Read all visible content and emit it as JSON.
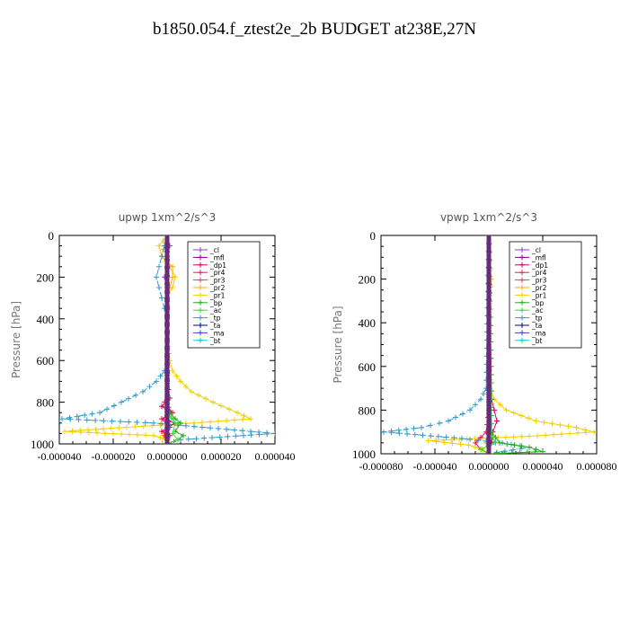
{
  "title": "b1850.054.f_ztest2e_2b  BUDGET at238E,27N",
  "colors": {
    "_cl": "#9933cc",
    "_mfl": "#880088",
    "_dp1": "#cc0066",
    "_pr4": "#dd2255",
    "_pr3": "#ff3366",
    "_pr2": "#ffaa00",
    "_pr1": "#f2d000",
    "_bp": "#22aa22",
    "_ac": "#33dd33",
    "_tp": "#3399cc",
    "_ta": "#000088",
    "_ma": "#4444cc",
    "_bt": "#00cccc"
  },
  "chart_data": [
    {
      "type": "line",
      "title": "upwp   1xm^2/s^3",
      "ylabel": "Pressure [hPa]",
      "xlabel": "",
      "xlim": [
        -4e-05,
        4e-05
      ],
      "ylim": [
        1000,
        0
      ],
      "xticks": [
        "-0.000040",
        "-0.000020",
        "0.000000",
        "0.000020",
        "0.000040"
      ],
      "yticks": [
        "0",
        "200",
        "400",
        "600",
        "800",
        "1000"
      ],
      "legend_position": "top-right",
      "legend": [
        "_cl",
        "_mfl",
        "_dp1",
        "_pr4",
        "_pr3",
        "_pr2",
        "_pr1",
        "_bp",
        "_ac",
        "_tp",
        "_ta",
        "_ma",
        "_bt"
      ],
      "series": [
        {
          "name": "_pr1",
          "p": [
            0,
            50,
            100,
            150,
            200,
            250,
            300,
            400,
            500,
            600,
            650,
            700,
            750,
            800,
            850,
            880,
            900,
            920,
            940,
            960,
            980,
            1000
          ],
          "v": [
            0,
            -3e-06,
            -2e-06,
            1e-06,
            3e-06,
            2e-06,
            0,
            0,
            0,
            1e-06,
            2e-06,
            5e-06,
            9e-06,
            1.7e-05,
            2.6e-05,
            3.1e-05,
            1e-05,
            -1.5e-05,
            -3.8e-05,
            -5e-06,
            0,
            0
          ]
        },
        {
          "name": "_pr2",
          "p": [
            0,
            100,
            150,
            200,
            250,
            300,
            500,
            700,
            800,
            900,
            950,
            1000
          ],
          "v": [
            0,
            -2e-06,
            2e-06,
            2e-06,
            1e-06,
            0,
            0,
            0,
            0,
            0,
            -1e-06,
            -2e-06
          ]
        },
        {
          "name": "_tp",
          "p": [
            0,
            50,
            100,
            150,
            200,
            250,
            300,
            350,
            400,
            500,
            600,
            650,
            700,
            750,
            800,
            850,
            880,
            900,
            950,
            980,
            1000
          ],
          "v": [
            0,
            -1e-06,
            -2e-06,
            -3e-06,
            -4e-06,
            -3e-06,
            -2e-06,
            -1e-06,
            0,
            0,
            0,
            -1e-06,
            -4e-06,
            -9e-06,
            -1.7e-05,
            -2.5e-05,
            -3.9e-05,
            -5e-06,
            4e-05,
            5e-06,
            0
          ]
        },
        {
          "name": "_dp1",
          "p": [
            0,
            700,
            780,
            820,
            850,
            880,
            900,
            940,
            960,
            980,
            1000
          ],
          "v": [
            0,
            0,
            1e-06,
            -2e-06,
            2e-06,
            -2e-06,
            3e-06,
            -2e-06,
            1e-06,
            0,
            0
          ]
        },
        {
          "name": "_pr4",
          "p": [
            0,
            750,
            800,
            850,
            880,
            920,
            960,
            1000
          ],
          "v": [
            0,
            0,
            -1e-06,
            2e-06,
            -2e-06,
            1e-06,
            -1e-06,
            0
          ]
        },
        {
          "name": "_bp",
          "p": [
            0,
            800,
            850,
            880,
            900,
            940,
            960,
            980,
            1000
          ],
          "v": [
            0,
            0,
            1e-06,
            3e-06,
            5e-06,
            3e-06,
            6e-06,
            4e-06,
            0
          ]
        },
        {
          "name": "_ac",
          "p": [
            0,
            850,
            900,
            950,
            980,
            1000
          ],
          "v": [
            0,
            0,
            3e-06,
            2e-06,
            4e-06,
            0
          ]
        },
        {
          "name": "_cl",
          "p": [
            0,
            50,
            100,
            150,
            200,
            250,
            300,
            500,
            700,
            900,
            1000
          ],
          "v": [
            0,
            1e-06,
            0,
            0,
            -1e-06,
            0,
            0,
            0,
            0,
            0,
            0
          ]
        },
        {
          "name": "_mfl",
          "p": [
            0,
            1000
          ],
          "v": [
            0,
            0
          ]
        },
        {
          "name": "_ta",
          "p": [
            0,
            1000
          ],
          "v": [
            0,
            0
          ]
        },
        {
          "name": "_ma",
          "p": [
            0,
            1000
          ],
          "v": [
            0,
            0
          ]
        },
        {
          "name": "_bt",
          "p": [
            0,
            1000
          ],
          "v": [
            0,
            0
          ]
        }
      ]
    },
    {
      "type": "line",
      "title": "vpwp   1xm^2/s^3",
      "ylabel": "Pressure [hPa]",
      "xlabel": "",
      "xlim": [
        -8e-05,
        8e-05
      ],
      "ylim": [
        1000,
        0
      ],
      "xticks": [
        "-0.000080",
        "-0.000040",
        "0.000000",
        "0.000040",
        "0.000080"
      ],
      "yticks": [
        "0",
        "200",
        "400",
        "600",
        "800",
        "1000"
      ],
      "legend_position": "top-right",
      "legend": [
        "_cl",
        "_mfl",
        "_dp1",
        "_pr4",
        "_pr3",
        "_pr2",
        "_pr1",
        "_bp",
        "_ac",
        "_tp",
        "_ta",
        "_ma",
        "_bt"
      ],
      "series": [
        {
          "name": "_pr1",
          "p": [
            0,
            150,
            200,
            300,
            500,
            700,
            750,
            800,
            850,
            880,
            900,
            920,
            940,
            960,
            980,
            1000
          ],
          "v": [
            0,
            1e-06,
            2e-06,
            0,
            0,
            1e-06,
            4e-06,
            1.3e-05,
            3.5e-05,
            6.5e-05,
            7.8e-05,
            3e-05,
            -4.5e-05,
            -1.5e-05,
            -5e-06,
            0
          ]
        },
        {
          "name": "_pr2",
          "p": [
            0,
            200,
            500,
            900,
            950,
            1000
          ],
          "v": [
            0,
            1e-06,
            0,
            0,
            -2e-06,
            0
          ]
        },
        {
          "name": "_tp",
          "p": [
            0,
            700,
            750,
            800,
            850,
            880,
            900,
            930,
            950,
            970,
            1000
          ],
          "v": [
            0,
            -2e-06,
            -6e-06,
            -1.4e-05,
            -3e-05,
            -5e-05,
            -7.8e-05,
            -2e-05,
            1e-05,
            3e-05,
            0
          ]
        },
        {
          "name": "_dp1",
          "p": [
            0,
            750,
            800,
            850,
            900,
            950,
            1000
          ],
          "v": [
            0,
            2e-06,
            4e-06,
            6e-06,
            3e-06,
            2e-06,
            0
          ]
        },
        {
          "name": "_pr4",
          "p": [
            0,
            800,
            900,
            950,
            980,
            1000
          ],
          "v": [
            0,
            0,
            -2e-06,
            -1e-05,
            -6e-06,
            0
          ]
        },
        {
          "name": "_bp",
          "p": [
            0,
            900,
            950,
            970,
            990,
            1000
          ],
          "v": [
            0,
            2e-06,
            8e-06,
            3e-05,
            4e-05,
            0
          ]
        },
        {
          "name": "_ac",
          "p": [
            0,
            900,
            950,
            980,
            1000
          ],
          "v": [
            0,
            1e-06,
            5e-06,
            -6e-06,
            0
          ]
        },
        {
          "name": "_cl",
          "p": [
            0,
            1000
          ],
          "v": [
            0,
            0
          ]
        },
        {
          "name": "_mfl",
          "p": [
            0,
            1000
          ],
          "v": [
            0,
            0
          ]
        },
        {
          "name": "_ta",
          "p": [
            0,
            1000
          ],
          "v": [
            0,
            0
          ]
        },
        {
          "name": "_ma",
          "p": [
            0,
            1000
          ],
          "v": [
            0,
            0
          ]
        },
        {
          "name": "_bt",
          "p": [
            0,
            1000
          ],
          "v": [
            0,
            0
          ]
        }
      ]
    }
  ]
}
